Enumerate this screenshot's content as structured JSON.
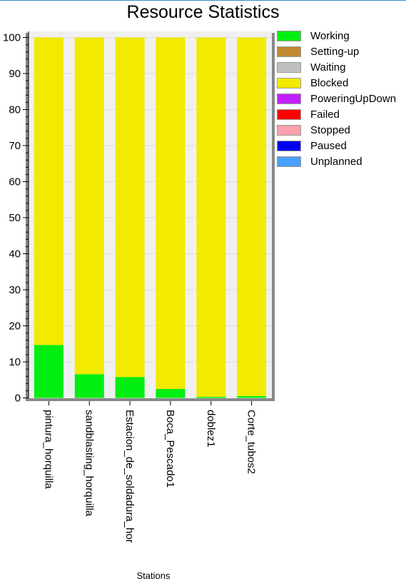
{
  "chart_data": {
    "type": "bar",
    "stacked": true,
    "title": "Resource Statistics",
    "xlabel": "Stations",
    "ylabel": "",
    "ylim": [
      0,
      100
    ],
    "yticks": [
      0,
      10,
      20,
      30,
      40,
      50,
      60,
      70,
      80,
      90,
      100
    ],
    "grid": true,
    "legend_position": "right",
    "categories": [
      "pintura_horquilla",
      "sandblasting_horquilla",
      "Estacion_de_soldadura_hor",
      "Boca_Pescado1",
      "doblez1",
      "Corte_tubos2"
    ],
    "series": [
      {
        "name": "Working",
        "color": "#00ee11",
        "values": [
          14.7,
          6.6,
          5.8,
          2.5,
          0.3,
          0.5
        ]
      },
      {
        "name": "Setting-up",
        "color": "#c08a35",
        "values": [
          0,
          0,
          0,
          0,
          0,
          0
        ]
      },
      {
        "name": "Waiting",
        "color": "#c0c0c0",
        "values": [
          0,
          0,
          0,
          0,
          0,
          0
        ]
      },
      {
        "name": "Blocked",
        "color": "#f2ea00",
        "values": [
          85.3,
          93.4,
          94.2,
          97.5,
          99.7,
          99.5
        ]
      },
      {
        "name": "PoweringUpDown",
        "color": "#c020ff",
        "values": [
          0,
          0,
          0,
          0,
          0,
          0
        ]
      },
      {
        "name": "Failed",
        "color": "#ff0000",
        "values": [
          0,
          0,
          0,
          0,
          0,
          0
        ]
      },
      {
        "name": "Stopped",
        "color": "#ffa0ac",
        "values": [
          0,
          0,
          0,
          0,
          0,
          0
        ]
      },
      {
        "name": "Paused",
        "color": "#0000ee",
        "values": [
          0,
          0,
          0,
          0,
          0,
          0
        ]
      },
      {
        "name": "Unplanned",
        "color": "#4aa0ff",
        "values": [
          0,
          0,
          0,
          0,
          0,
          0
        ]
      }
    ]
  }
}
